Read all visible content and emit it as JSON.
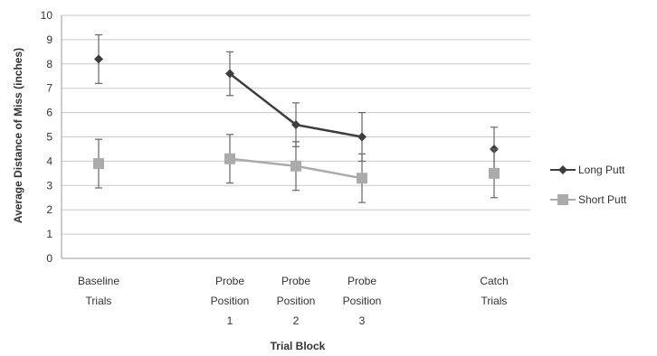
{
  "chart_data": {
    "type": "line",
    "xlabel": "Trial Block",
    "ylabel": "Average Distance of Miss (inches)",
    "ylim": [
      0,
      10
    ],
    "yticks": [
      0,
      1,
      2,
      3,
      4,
      5,
      6,
      7,
      8,
      9,
      10
    ],
    "grid": true,
    "legend_position": "right",
    "categories": [
      [
        "Baseline",
        "Trials"
      ],
      [
        "Probe",
        "Position",
        "1"
      ],
      [
        "Probe",
        "Position",
        "2"
      ],
      [
        "Probe",
        "Position",
        "3"
      ],
      [
        "Catch",
        "Trials"
      ]
    ],
    "connected_segment": [
      1,
      2,
      3
    ],
    "series": [
      {
        "name": "Long Putt",
        "color": "#3d3d3d",
        "marker": "diamond",
        "values": [
          8.2,
          7.6,
          5.5,
          5.0,
          4.5
        ],
        "error": [
          1.0,
          0.9,
          0.9,
          1.0,
          0.9
        ]
      },
      {
        "name": "Short Putt",
        "color": "#ababab",
        "marker": "square",
        "values": [
          3.9,
          4.1,
          3.8,
          3.3,
          3.5
        ],
        "error": [
          1.0,
          1.0,
          1.0,
          1.0,
          1.0
        ]
      }
    ]
  }
}
